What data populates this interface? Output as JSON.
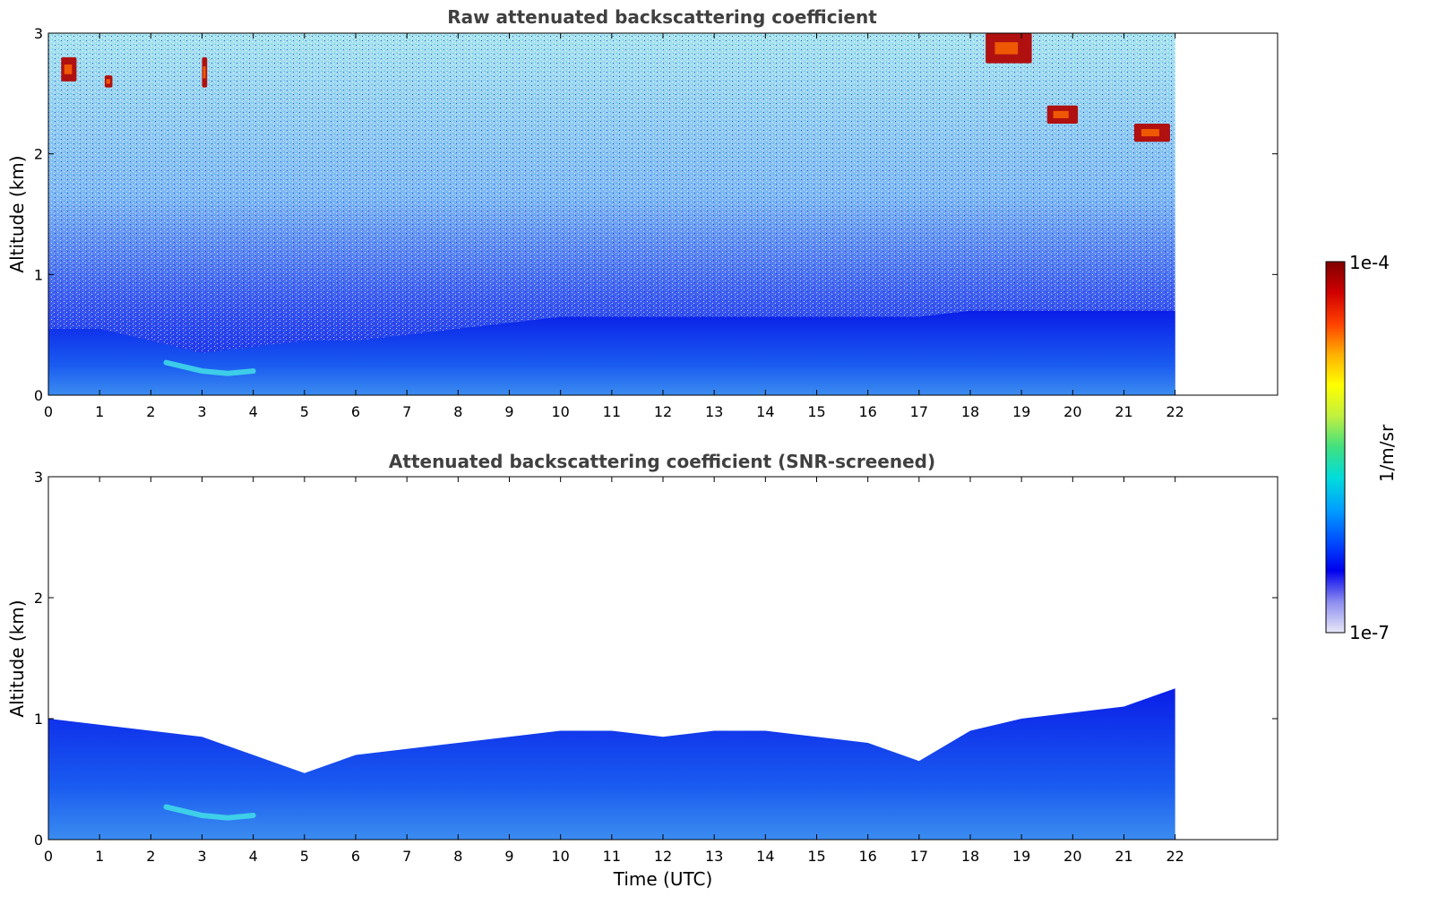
{
  "chart_data": [
    {
      "type": "heatmap",
      "title": "Raw attenuated backscattering coefficient",
      "xlabel": "",
      "ylabel": "Altitude (km)",
      "xlim": [
        0,
        24
      ],
      "ylim": [
        0,
        3
      ],
      "x_ticks": [
        0,
        1,
        2,
        3,
        4,
        5,
        6,
        7,
        8,
        9,
        10,
        11,
        12,
        13,
        14,
        15,
        16,
        17,
        18,
        19,
        20,
        21,
        22
      ],
      "y_ticks": [
        0,
        1,
        2,
        3
      ],
      "data_extent_hours": [
        0,
        22
      ],
      "features": [
        {
          "kind": "boundary_layer_top_km",
          "x": [
            0,
            1,
            2,
            3,
            4,
            5,
            6,
            7,
            8,
            9,
            10,
            11,
            12,
            13,
            14,
            15,
            16,
            17,
            18,
            19,
            20,
            21,
            22
          ],
          "y": [
            0.55,
            0.55,
            0.45,
            0.35,
            0.4,
            0.45,
            0.45,
            0.5,
            0.55,
            0.6,
            0.65,
            0.65,
            0.65,
            0.65,
            0.65,
            0.65,
            0.65,
            0.65,
            0.7,
            0.7,
            0.7,
            0.7,
            0.7
          ]
        },
        {
          "kind": "aerosol_layer",
          "x": [
            2.3,
            3.0,
            3.5,
            4.0
          ],
          "y": [
            0.27,
            0.2,
            0.18,
            0.2
          ]
        },
        {
          "kind": "cloud",
          "x": [
            0.25,
            0.55
          ],
          "y": [
            2.6,
            2.8
          ]
        },
        {
          "kind": "cloud",
          "x": [
            1.1,
            1.25
          ],
          "y": [
            2.55,
            2.65
          ]
        },
        {
          "kind": "cloud",
          "x": [
            3.0,
            3.1
          ],
          "y": [
            2.55,
            2.8
          ]
        },
        {
          "kind": "cloud",
          "x": [
            18.3,
            19.2
          ],
          "y": [
            2.75,
            3.0
          ]
        },
        {
          "kind": "cloud",
          "x": [
            19.5,
            20.1
          ],
          "y": [
            2.25,
            2.4
          ]
        },
        {
          "kind": "cloud",
          "x": [
            21.2,
            21.9
          ],
          "y": [
            2.1,
            2.25
          ]
        }
      ]
    },
    {
      "type": "heatmap",
      "title": "Attenuated backscattering coefficient (SNR-screened)",
      "xlabel": "Time (UTC)",
      "ylabel": "Altitude (km)",
      "xlim": [
        0,
        24
      ],
      "ylim": [
        0,
        3
      ],
      "x_ticks": [
        0,
        1,
        2,
        3,
        4,
        5,
        6,
        7,
        8,
        9,
        10,
        11,
        12,
        13,
        14,
        15,
        16,
        17,
        18,
        19,
        20,
        21,
        22
      ],
      "y_ticks": [
        0,
        1,
        2,
        3
      ],
      "data_extent_hours": [
        0,
        22
      ],
      "features": [
        {
          "kind": "signal_top_km",
          "x": [
            0,
            1,
            2,
            3,
            4,
            5,
            6,
            7,
            8,
            9,
            10,
            11,
            12,
            13,
            14,
            15,
            16,
            17,
            18,
            19,
            20,
            21,
            22
          ],
          "y": [
            1.0,
            0.95,
            0.9,
            0.85,
            0.7,
            0.55,
            0.7,
            0.75,
            0.8,
            0.85,
            0.9,
            0.9,
            0.85,
            0.9,
            0.9,
            0.85,
            0.8,
            0.65,
            0.9,
            1.0,
            1.05,
            1.1,
            1.25
          ]
        },
        {
          "kind": "aerosol_layer",
          "x": [
            2.3,
            3.0,
            3.5,
            4.0
          ],
          "y": [
            0.27,
            0.2,
            0.18,
            0.2
          ]
        }
      ]
    }
  ],
  "colorbar": {
    "label": "1/m/sr",
    "max_label": "1e-4",
    "min_label": "1e-7",
    "colormap": [
      "#e8e8f8",
      "#8c8cf0",
      "#0000ee",
      "#0050ff",
      "#00a0ff",
      "#00dcdc",
      "#40e080",
      "#c0f040",
      "#ffff00",
      "#ffb000",
      "#ff4000",
      "#d00000",
      "#800000"
    ]
  }
}
